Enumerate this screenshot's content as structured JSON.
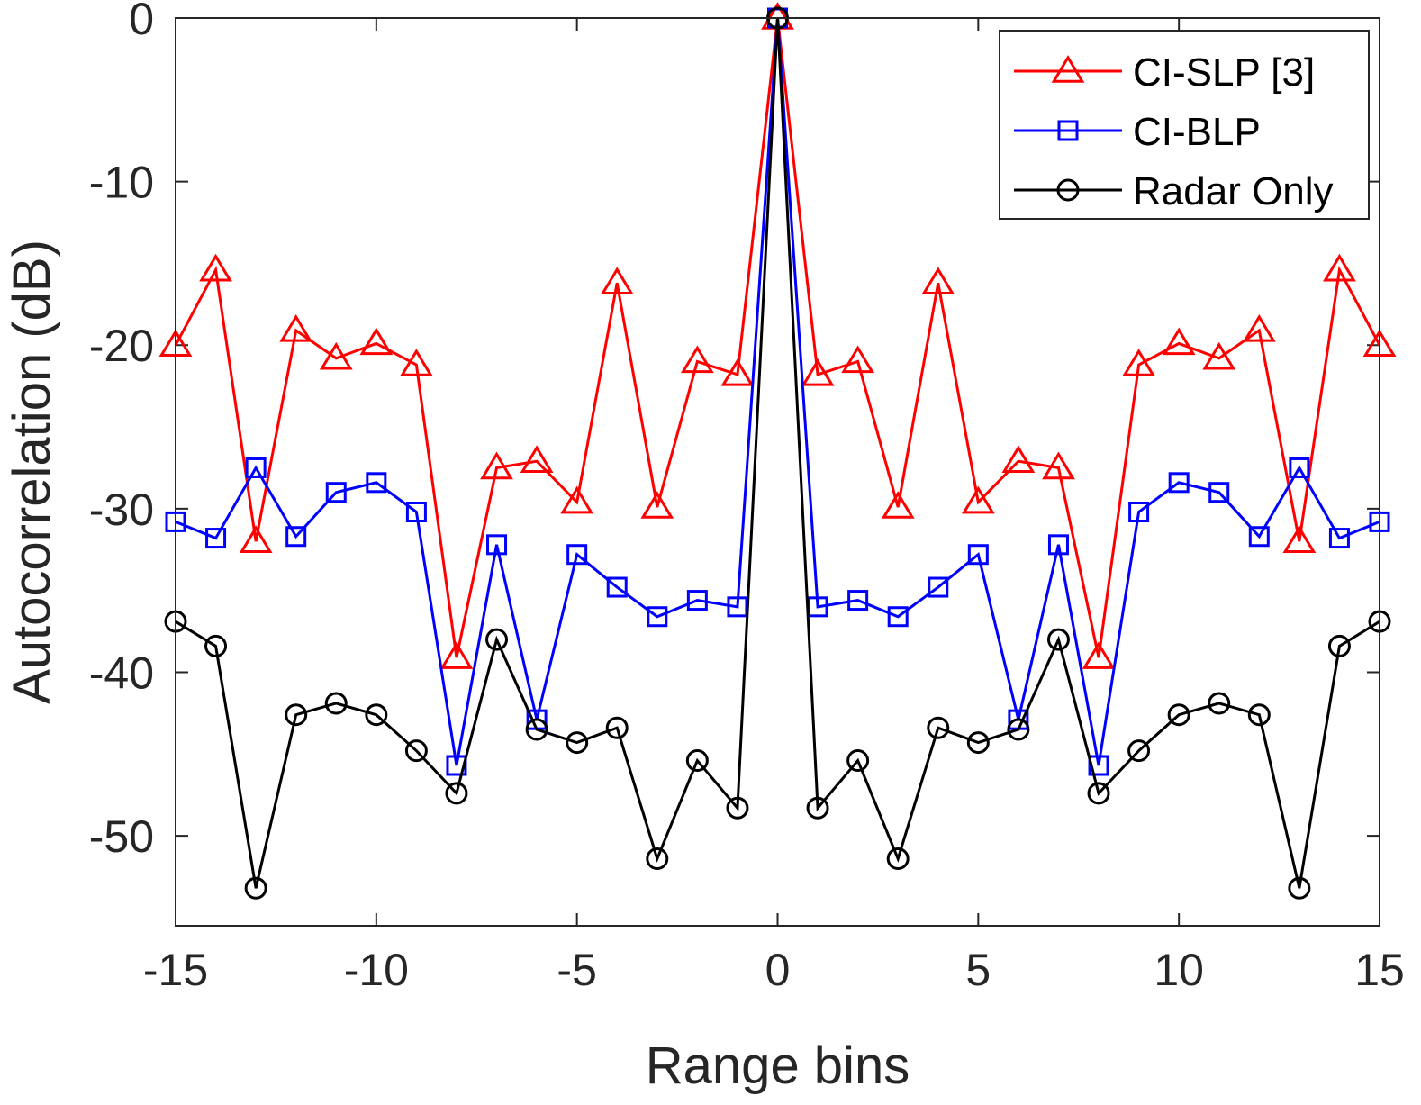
{
  "chart_data": {
    "type": "line",
    "title": "",
    "xlabel": "Range bins",
    "ylabel": "Autocorrelation (dB)",
    "xlim": [
      -15,
      15
    ],
    "ylim": [
      -55.5,
      0
    ],
    "xticks": [
      -15,
      -10,
      -5,
      0,
      5,
      10,
      15
    ],
    "yticks": [
      0,
      -10,
      -20,
      -30,
      -40,
      -50
    ],
    "grid": false,
    "legend_position": "top-right",
    "x": [
      -15,
      -14,
      -13,
      -12,
      -11,
      -10,
      -9,
      -8,
      -7,
      -6,
      -5,
      -4,
      -3,
      -2,
      -1,
      0,
      1,
      2,
      3,
      4,
      5,
      6,
      7,
      8,
      9,
      10,
      11,
      12,
      13,
      14,
      15
    ],
    "series": [
      {
        "name": "CI-SLP [3]",
        "color": "#ff0000",
        "marker": "triangle",
        "values": [
          -20.0,
          -15.4,
          -32.0,
          -19.1,
          -20.8,
          -19.9,
          -21.2,
          -39.1,
          -27.5,
          -27.1,
          -29.6,
          -16.2,
          -29.9,
          -21.0,
          -21.8,
          0,
          -21.8,
          -21.0,
          -29.9,
          -16.2,
          -29.6,
          -27.1,
          -27.5,
          -39.1,
          -21.2,
          -19.9,
          -20.8,
          -19.1,
          -32.0,
          -15.4,
          -20.0
        ]
      },
      {
        "name": "CI-BLP",
        "color": "#0000ff",
        "marker": "square",
        "values": [
          -30.8,
          -31.8,
          -27.5,
          -31.7,
          -29.0,
          -28.4,
          -30.2,
          -45.7,
          -32.2,
          -42.9,
          -32.8,
          -34.8,
          -36.6,
          -35.6,
          -36.0,
          0,
          -36.0,
          -35.6,
          -36.6,
          -34.8,
          -32.8,
          -42.9,
          -32.2,
          -45.7,
          -30.2,
          -28.4,
          -29.0,
          -31.7,
          -27.5,
          -31.8,
          -30.8
        ]
      },
      {
        "name": "Radar Only",
        "color": "#000000",
        "marker": "circle",
        "values": [
          -36.9,
          -38.4,
          -53.2,
          -42.6,
          -41.9,
          -42.6,
          -44.8,
          -47.4,
          -38.0,
          -43.5,
          -44.3,
          -43.4,
          -51.4,
          -45.4,
          -48.3,
          0,
          -48.3,
          -45.4,
          -51.4,
          -43.4,
          -44.3,
          -43.5,
          -38.0,
          -47.4,
          -44.8,
          -42.6,
          -41.9,
          -42.6,
          -53.2,
          -38.4,
          -36.9
        ]
      }
    ]
  }
}
